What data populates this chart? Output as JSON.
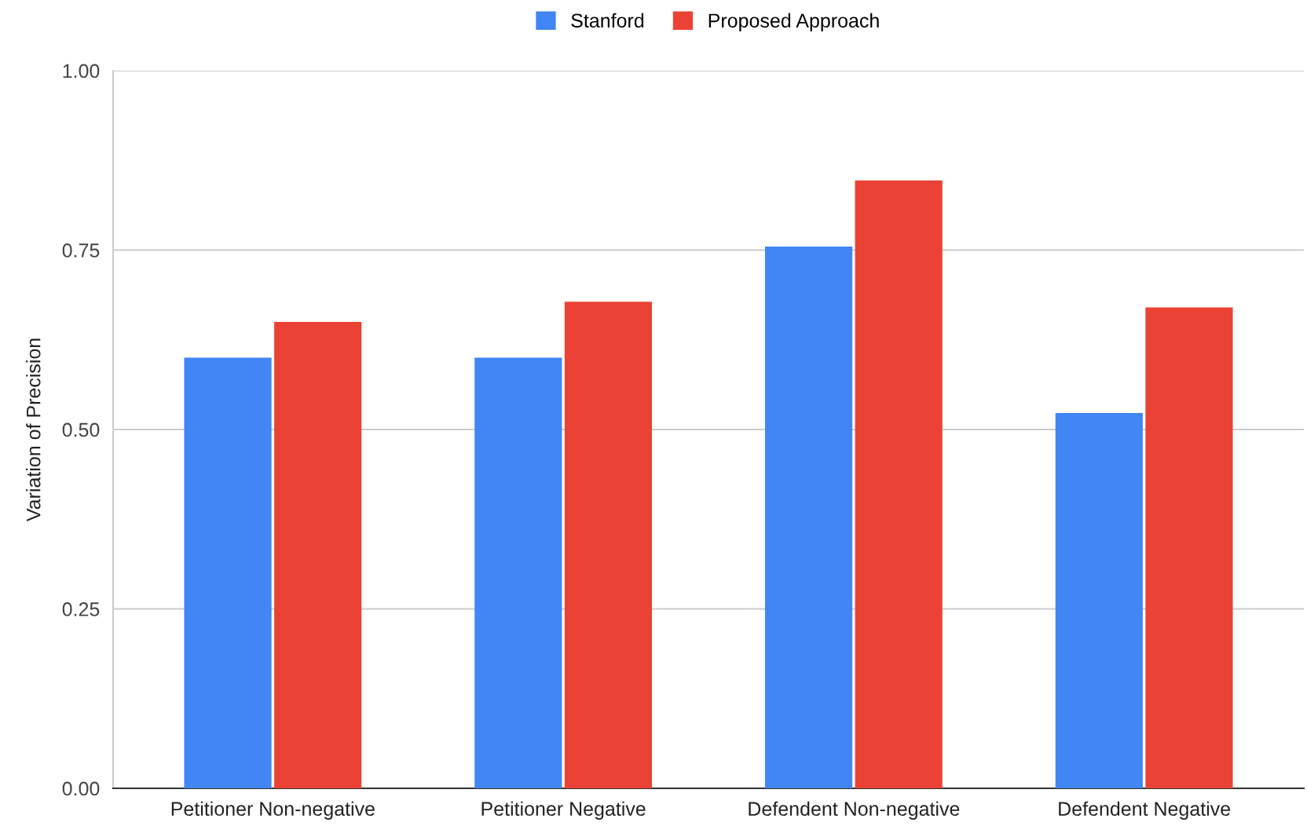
{
  "chart_data": {
    "type": "bar",
    "ylabel": "Variation of Precision",
    "categories": [
      "Petitioner Non-negative",
      "Petitioner Negative",
      "Defendent Non-negative",
      "Defendent Negative"
    ],
    "series": [
      {
        "name": "Stanford",
        "color": "#4285f4",
        "values": [
          0.6,
          0.6,
          0.755,
          0.523
        ]
      },
      {
        "name": "Proposed Approach",
        "color": "#ea4335",
        "values": [
          0.65,
          0.678,
          0.847,
          0.67
        ]
      }
    ],
    "ylim": [
      0,
      1
    ],
    "yticks": [
      {
        "value": 0,
        "label": "0.00"
      },
      {
        "value": 0.25,
        "label": "0.25"
      },
      {
        "value": 0.5,
        "label": "0.50"
      },
      {
        "value": 0.75,
        "label": "0.75"
      },
      {
        "value": 1,
        "label": "1.00"
      }
    ],
    "grid": "y",
    "legend": "top"
  }
}
